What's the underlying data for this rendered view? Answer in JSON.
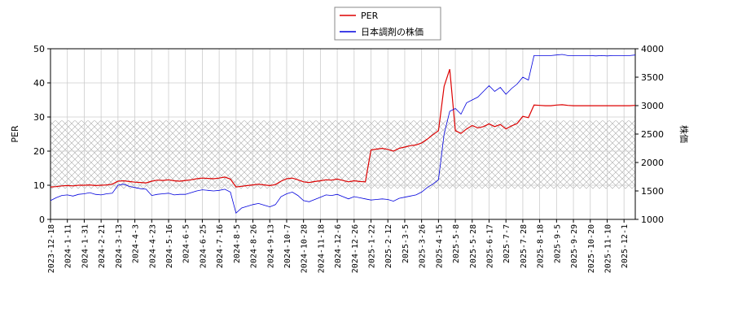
{
  "chart_data": {
    "type": "line",
    "categories": [
      "2023-12-18",
      null,
      null,
      "2024-1-11",
      null,
      null,
      "2024-1-31",
      null,
      null,
      "2024-2-21",
      null,
      null,
      "2024-3-13",
      null,
      null,
      "2024-4-3",
      null,
      null,
      "2024-4-23",
      null,
      null,
      "2024-5-16",
      null,
      null,
      "2024-6-5",
      null,
      null,
      "2024-6-25",
      null,
      null,
      "2024-7-16",
      null,
      null,
      "2024-8-5",
      null,
      null,
      "2024-8-26",
      null,
      null,
      "2024-9-13",
      null,
      null,
      "2024-10-7",
      null,
      null,
      "2024-10-28",
      null,
      null,
      "2024-11-18",
      null,
      null,
      "2024-12-6",
      null,
      null,
      "2024-12-26",
      null,
      null,
      "2025-1-22",
      null,
      null,
      "2025-2-12",
      null,
      null,
      "2025-3-5",
      null,
      null,
      "2025-3-26",
      null,
      null,
      "2025-4-15",
      null,
      null,
      "2025-5-8",
      null,
      null,
      "2025-5-28",
      null,
      null,
      "2025-6-17",
      null,
      null,
      "2025-7-7",
      null,
      null,
      "2025-7-28",
      null,
      null,
      "2025-8-18",
      null,
      null,
      "2025-9-5",
      null,
      null,
      "2025-9-29",
      null,
      null,
      "2025-10-20",
      null,
      null,
      "2025-11-10",
      null,
      null,
      "2025-12-1",
      null,
      null
    ],
    "ylabel": "PER",
    "y2label": "株価",
    "ylim": [
      0,
      50
    ],
    "yticks": [
      0,
      10,
      20,
      30,
      40,
      50
    ],
    "y2lim": [
      1000,
      4000
    ],
    "y2ticks": [
      1000,
      1500,
      2000,
      2500,
      3000,
      3500,
      4000
    ],
    "grid": true,
    "legend": "upper center",
    "shaded_range": [
      9,
      29
    ],
    "series": [
      {
        "name": "PER",
        "color": "#dd0000",
        "values": [
          9.5,
          9.6,
          9.8,
          9.9,
          9.8,
          10.0,
          10.0,
          10.1,
          9.9,
          10.0,
          10.1,
          10.3,
          11.2,
          11.3,
          11.1,
          10.9,
          10.8,
          10.7,
          11.2,
          11.5,
          11.4,
          11.6,
          11.3,
          11.2,
          11.4,
          11.6,
          11.9,
          12.1,
          12.0,
          11.9,
          12.1,
          12.4,
          11.8,
          9.5,
          9.7,
          9.9,
          10.1,
          10.3,
          10.1,
          9.9,
          10.2,
          11.2,
          11.9,
          12.1,
          11.6,
          11.0,
          10.8,
          11.1,
          11.3,
          11.6,
          11.5,
          11.8,
          11.4,
          11.0,
          11.3,
          11.1,
          11.0,
          20.3,
          20.6,
          20.8,
          20.5,
          20.0,
          20.8,
          21.2,
          21.6,
          21.8,
          22.4,
          23.5,
          24.8,
          26.0,
          39.0,
          44.0,
          26.0,
          25.2,
          26.5,
          27.5,
          26.8,
          27.2,
          28.0,
          27.2,
          27.8,
          26.5,
          27.4,
          28.1,
          30.2,
          29.8,
          33.5,
          33.4,
          33.3,
          33.3,
          33.5,
          33.6,
          33.4,
          33.3,
          33.3,
          33.3,
          33.3,
          33.3,
          33.3,
          33.3,
          33.3,
          33.3,
          33.3,
          33.3,
          33.4
        ]
      },
      {
        "name": "日本調剤の株価",
        "color": "#0000dd",
        "axis": "y2",
        "values": [
          1330,
          1380,
          1420,
          1430,
          1410,
          1440,
          1450,
          1470,
          1440,
          1430,
          1450,
          1460,
          1600,
          1620,
          1580,
          1560,
          1540,
          1530,
          1420,
          1440,
          1450,
          1460,
          1430,
          1440,
          1440,
          1470,
          1500,
          1520,
          1510,
          1500,
          1510,
          1530,
          1480,
          1110,
          1200,
          1230,
          1260,
          1280,
          1250,
          1220,
          1260,
          1400,
          1450,
          1480,
          1420,
          1330,
          1310,
          1350,
          1390,
          1430,
          1420,
          1440,
          1400,
          1360,
          1400,
          1380,
          1360,
          1340,
          1350,
          1360,
          1350,
          1320,
          1370,
          1390,
          1410,
          1430,
          1480,
          1560,
          1620,
          1700,
          2500,
          2900,
          2950,
          2850,
          3050,
          3100,
          3150,
          3250,
          3350,
          3250,
          3320,
          3200,
          3300,
          3380,
          3500,
          3450,
          3880,
          3880,
          3880,
          3880,
          3890,
          3900,
          3880,
          3880,
          3880,
          3880,
          3880,
          3875,
          3880,
          3875,
          3880,
          3880,
          3880,
          3880,
          3890
        ]
      }
    ]
  }
}
